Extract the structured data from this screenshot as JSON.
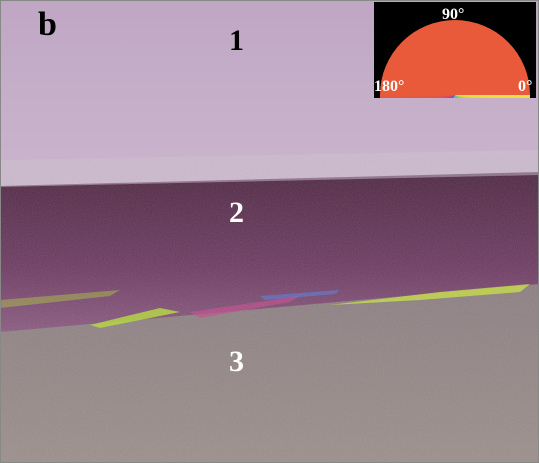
{
  "panel_label": "b",
  "regions": [
    "1",
    "2",
    "3"
  ],
  "inset": {
    "top_label": "90°",
    "left_label": "180°",
    "right_label": "0°"
  }
}
